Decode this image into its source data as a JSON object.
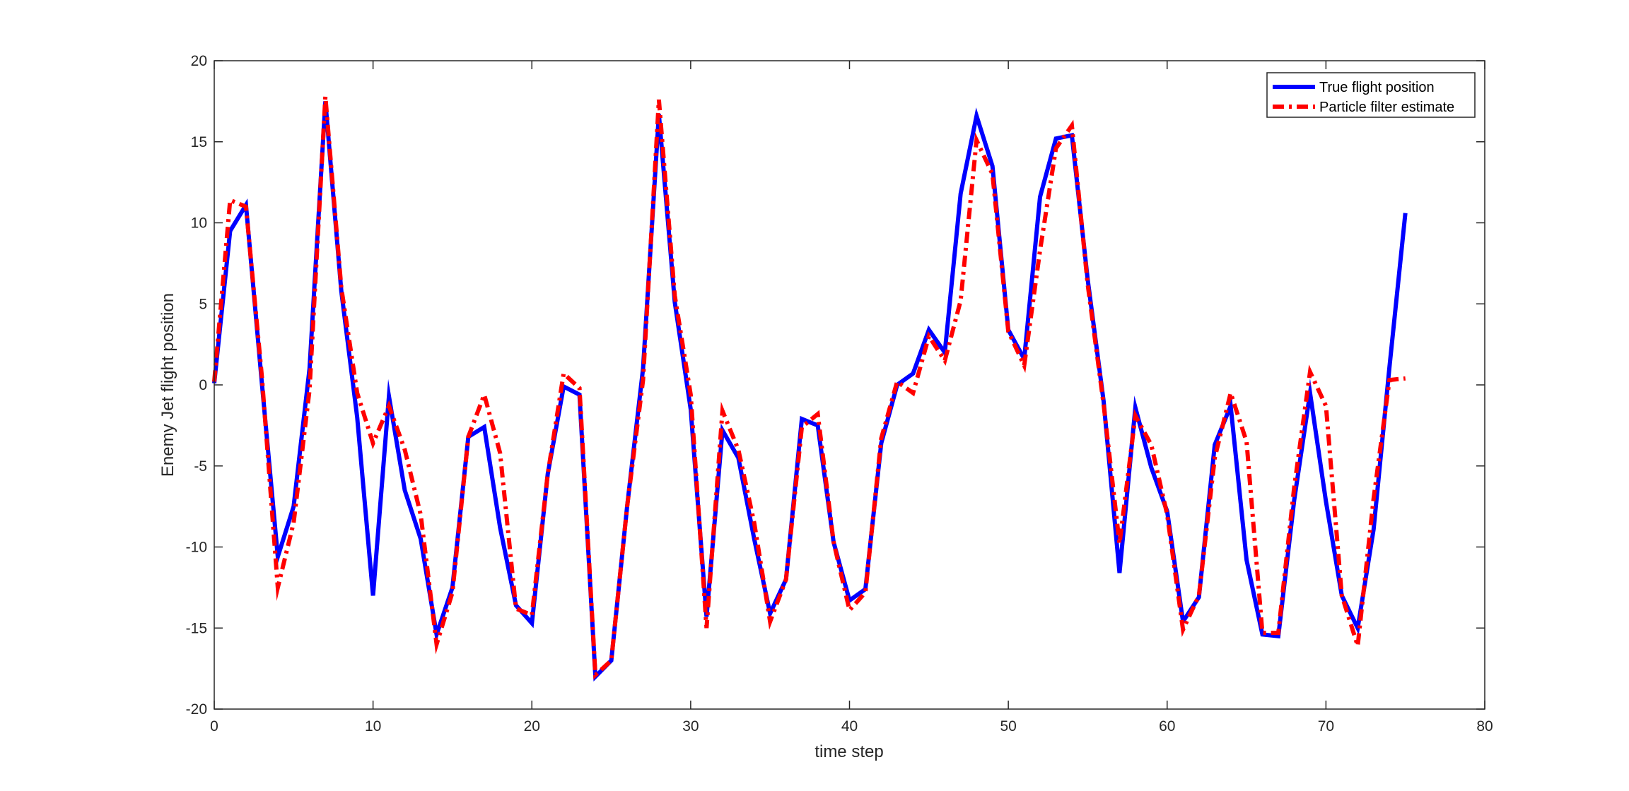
{
  "chart_data": {
    "type": "line",
    "title": "",
    "xlabel": "time step",
    "ylabel": "Enemy Jet flight position",
    "xlim": [
      0,
      80
    ],
    "ylim": [
      -20,
      20
    ],
    "xticks": [
      "0",
      "10",
      "20",
      "30",
      "40",
      "50",
      "60",
      "70",
      "80"
    ],
    "yticks": [
      "-20",
      "-15",
      "-10",
      "-5",
      "0",
      "5",
      "10",
      "15",
      "20"
    ],
    "grid": false,
    "legend_position": "top-right",
    "x": [
      0,
      1,
      2,
      3,
      4,
      5,
      6,
      7,
      8,
      9,
      10,
      11,
      12,
      13,
      14,
      15,
      16,
      17,
      18,
      19,
      20,
      21,
      22,
      23,
      24,
      25,
      26,
      27,
      28,
      29,
      30,
      31,
      32,
      33,
      34,
      35,
      36,
      37,
      38,
      39,
      40,
      41,
      42,
      43,
      44,
      45,
      46,
      47,
      48,
      49,
      50,
      51,
      52,
      53,
      54,
      55,
      56,
      57,
      58,
      59,
      60,
      61,
      62,
      63,
      64,
      65,
      66,
      67,
      68,
      69,
      70,
      71,
      72,
      73,
      74,
      75
    ],
    "series": [
      {
        "name": "True flight position",
        "color": "#0000ff",
        "style": "solid",
        "values": [
          0.1,
          9.5,
          11.1,
          0.1,
          -10.6,
          -7.5,
          1.0,
          17.5,
          5.8,
          -2.0,
          -13.0,
          -0.7,
          -6.5,
          -9.5,
          -15.4,
          -12.5,
          -3.2,
          -2.6,
          -8.8,
          -13.6,
          -14.7,
          -5.5,
          -0.1,
          -0.6,
          -18.0,
          -17.0,
          -7.5,
          1.0,
          16.7,
          5.1,
          -1.5,
          -14.3,
          -2.8,
          -4.5,
          -9.5,
          -14.1,
          -12.0,
          -2.1,
          -2.5,
          -9.7,
          -13.3,
          -12.6,
          -3.6,
          0.0,
          0.7,
          3.4,
          2.0,
          11.8,
          16.6,
          13.5,
          3.4,
          1.6,
          11.6,
          15.2,
          15.4,
          6.5,
          -1.0,
          -11.6,
          -1.4,
          -5.1,
          -7.8,
          -14.6,
          -13.1,
          -3.7,
          -1.3,
          -10.8,
          -15.4,
          -15.5,
          -7.1,
          -0.5,
          -7.2,
          -13.0,
          -15.0,
          -8.9,
          1.1,
          10.6
        ]
      },
      {
        "name": "Particle filter estimate",
        "color": "#ff0000",
        "style": "dash-dot",
        "values": [
          0.2,
          11.4,
          11.0,
          0.5,
          -12.5,
          -8.5,
          -0.3,
          17.8,
          6.0,
          -0.5,
          -3.6,
          -1.3,
          -4.0,
          -8.0,
          -16.0,
          -12.8,
          -3.2,
          -0.6,
          -4.2,
          -13.8,
          -14.2,
          -5.5,
          0.7,
          -0.2,
          -17.9,
          -17.0,
          -7.5,
          0.3,
          17.6,
          5.5,
          -0.6,
          -15.0,
          -1.6,
          -4.0,
          -8.5,
          -14.6,
          -12.0,
          -2.6,
          -1.8,
          -9.7,
          -13.9,
          -12.8,
          -3.3,
          0.2,
          -0.5,
          3.0,
          1.5,
          5.2,
          15.1,
          13.0,
          3.3,
          1.2,
          8.3,
          14.6,
          16.0,
          6.2,
          -1.2,
          -9.8,
          -1.9,
          -3.7,
          -8.0,
          -15.1,
          -13.0,
          -4.5,
          -0.5,
          -3.5,
          -15.3,
          -15.3,
          -6.3,
          0.8,
          -1.3,
          -13.0,
          -16.1,
          -7.0,
          0.3,
          0.4
        ]
      }
    ]
  }
}
